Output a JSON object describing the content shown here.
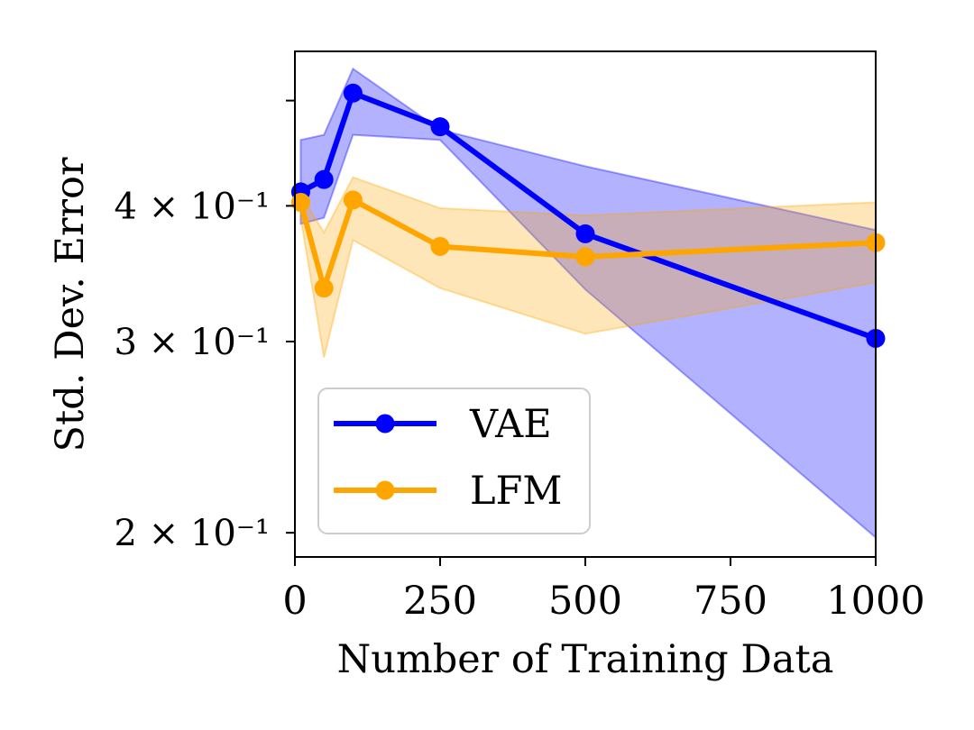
{
  "chart_data": {
    "type": "line",
    "xlabel": "Number of Training Data",
    "ylabel": "Std. Dev. Error",
    "x": [
      10,
      50,
      100,
      250,
      500,
      1000
    ],
    "xlim": [
      0,
      1000
    ],
    "ylim": [
      0.19,
      0.555
    ],
    "yscale": "log",
    "xticks": [
      0,
      250,
      500,
      750,
      1000
    ],
    "xtick_labels": [
      "0",
      "250",
      "500",
      "750",
      "1000"
    ],
    "yticks": [
      {
        "value": 0.2,
        "label": "2 × 10⁻¹"
      },
      {
        "value": 0.3,
        "label": "3 × 10⁻¹"
      },
      {
        "value": 0.4,
        "label": "4 × 10⁻¹"
      },
      {
        "value": 0.5,
        "label": ""
      }
    ],
    "series": [
      {
        "name": "VAE",
        "color": "#0000ff",
        "fill_color": "#0000ff",
        "values": [
          0.412,
          0.423,
          0.508,
          0.473,
          0.377,
          0.302
        ],
        "lower": [
          0.385,
          0.39,
          0.465,
          0.46,
          0.335,
          0.198
        ],
        "upper": [
          0.46,
          0.465,
          0.535,
          0.47,
          0.435,
          0.38
        ]
      },
      {
        "name": "LFM",
        "color": "#ffa500",
        "fill_color": "#ffa500",
        "values": [
          0.403,
          0.336,
          0.405,
          0.367,
          0.359,
          0.37
        ],
        "lower": [
          0.39,
          0.29,
          0.372,
          0.336,
          0.305,
          0.34
        ],
        "upper": [
          0.41,
          0.378,
          0.425,
          0.398,
          0.392,
          0.403
        ]
      }
    ],
    "legend": {
      "position": "bottom-left",
      "entries": [
        "VAE",
        "LFM"
      ]
    }
  }
}
